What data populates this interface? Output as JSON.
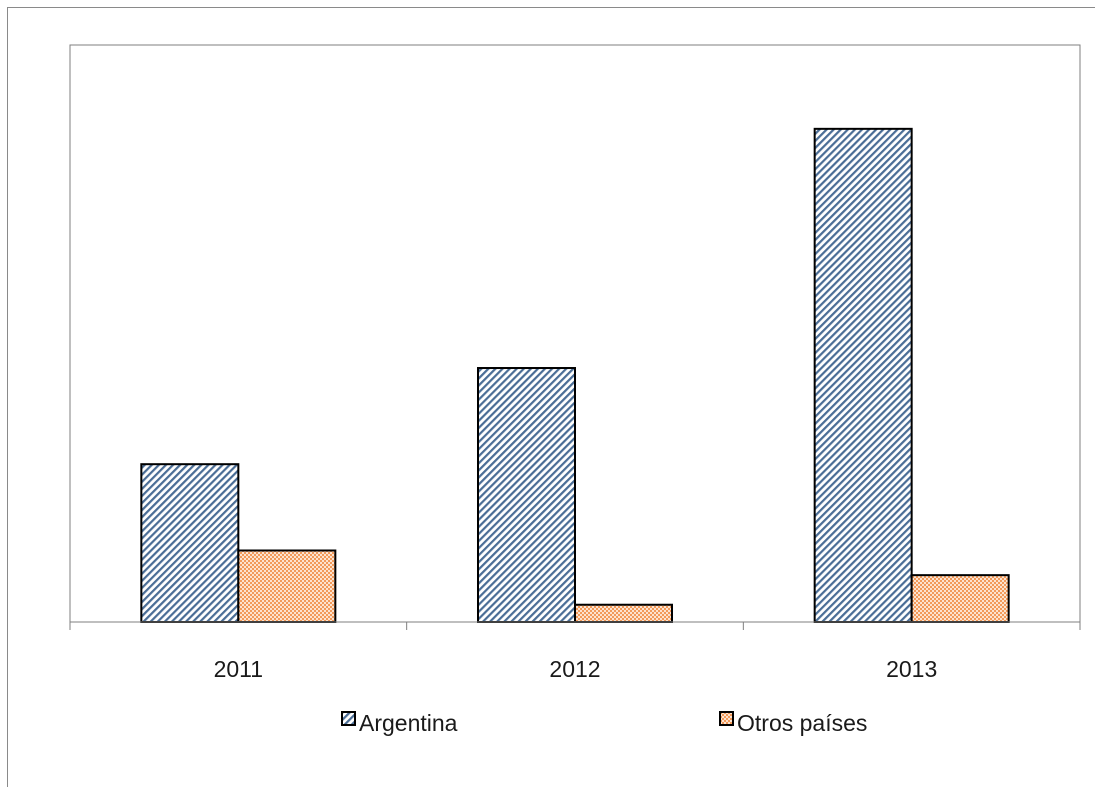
{
  "chart_data": {
    "type": "bar",
    "categories": [
      "2011",
      "2012",
      "2013"
    ],
    "series": [
      {
        "name": "Argentina",
        "values": [
          32,
          51.5,
          100
        ],
        "color": "#4a6d96",
        "pattern": "diagonal-hatch"
      },
      {
        "name": "Otros países",
        "values": [
          14.5,
          3.5,
          9.5
        ],
        "color": "#f29a5a",
        "pattern": "dotted"
      }
    ],
    "title": "",
    "xlabel": "",
    "ylabel": "",
    "ylim": [
      0,
      117
    ],
    "y_axis_visible": false,
    "grid": false,
    "legend": "bottom"
  }
}
